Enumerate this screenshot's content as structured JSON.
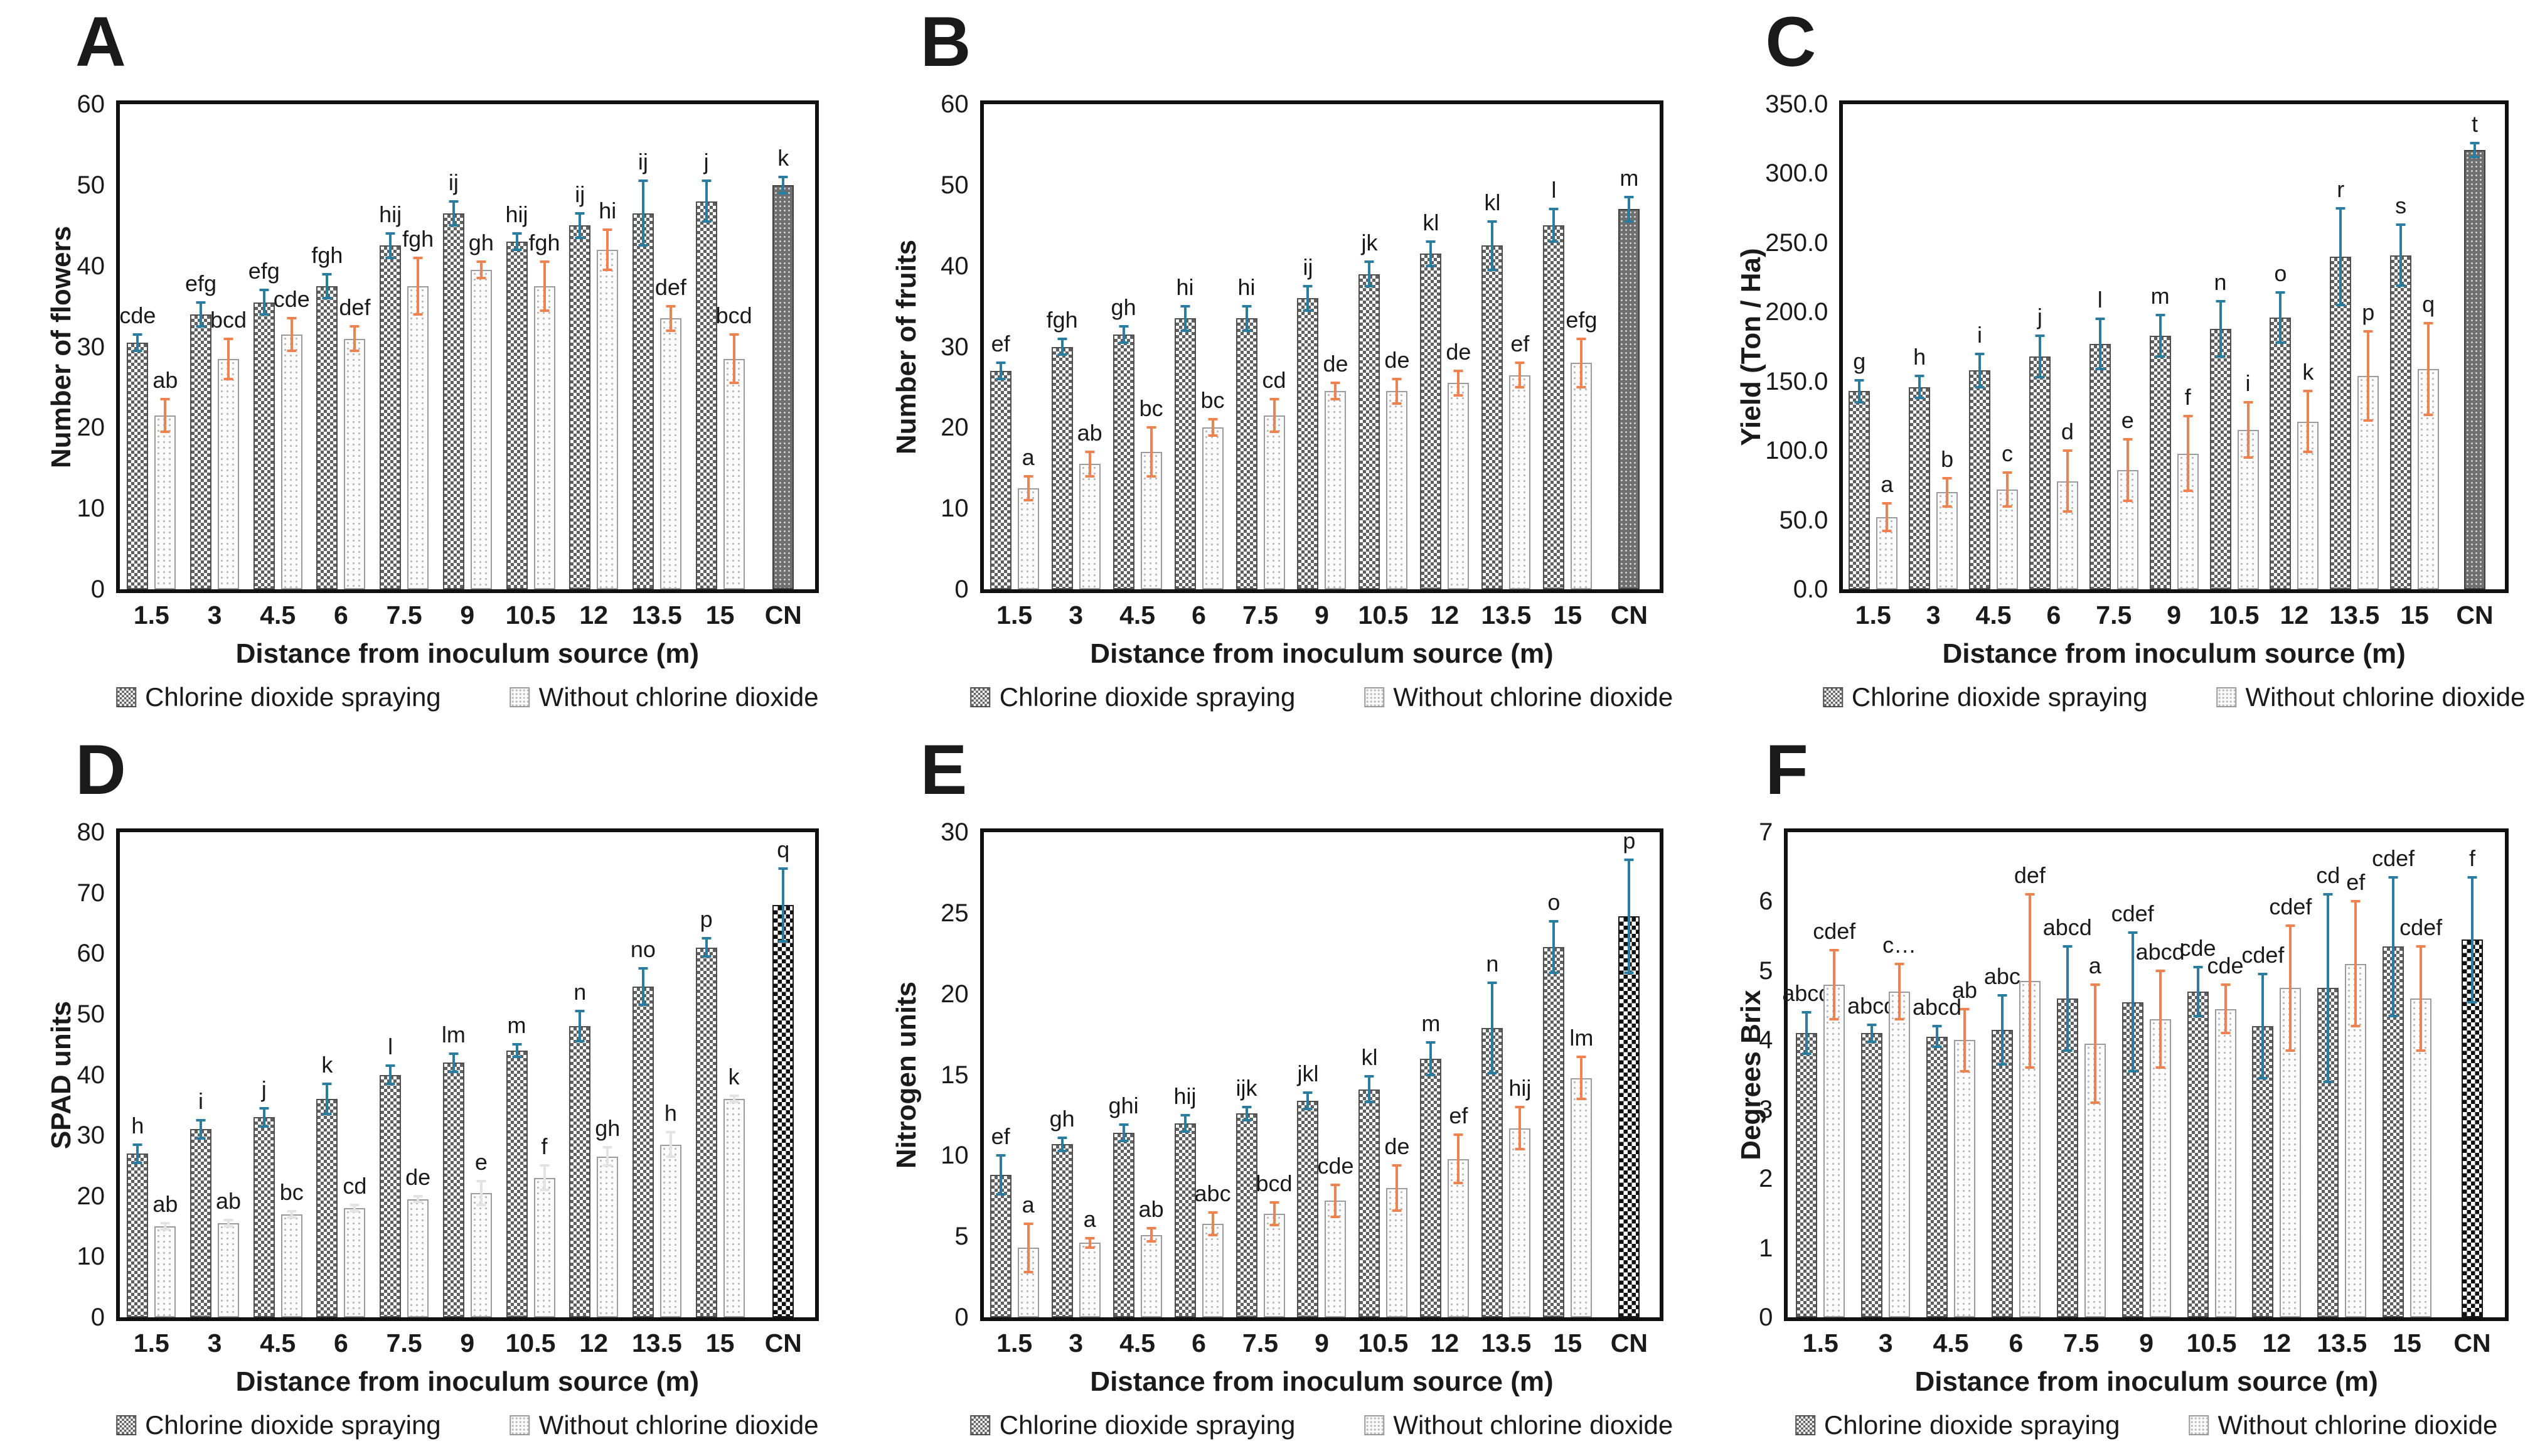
{
  "figure": {
    "type": "multi-panel-bar-figure",
    "panels": [
      "A",
      "B",
      "C",
      "D",
      "E",
      "F"
    ],
    "legend_labels": [
      "Chlorine dioxide spraying",
      "Without chlorine dioxide"
    ],
    "xlabel": "Distance from inoculum source (m)"
  },
  "colors": {
    "err1": "#2b7da0",
    "err2": "#ee8250",
    "text": "#1a1a1a"
  },
  "chart_data": [
    {
      "type": "bar",
      "panel": "A",
      "ylabel": "Number of flowers",
      "xlabel": "Distance from inoculum source (m)",
      "ylim": [
        0,
        60
      ],
      "ytick_labels": [
        "0",
        "10",
        "20",
        "30",
        "40",
        "50",
        "60"
      ],
      "categories": [
        "1.5",
        "3",
        "4.5",
        "6",
        "7.5",
        "9",
        "10.5",
        "12",
        "13.5",
        "15",
        "CN"
      ],
      "legend": [
        "Chlorine dioxide spraying",
        "Without chlorine dioxide"
      ],
      "legend_position": "bottom",
      "grid": false,
      "cn_style": "dark-dots",
      "margin_left": 185,
      "series": [
        {
          "name": "Chlorine dioxide spraying",
          "values": [
            30.5,
            34,
            35.5,
            37.5,
            42.5,
            46.5,
            43,
            45,
            46.5,
            48,
            50
          ],
          "err": [
            1,
            1.5,
            1.5,
            1.5,
            1.5,
            1.5,
            1,
            1.5,
            4,
            2.5,
            1
          ],
          "sig": [
            "cde",
            "efg",
            "efg",
            "fgh",
            "hij",
            "ij",
            "hij",
            "ij",
            "ij",
            "j",
            "k"
          ]
        },
        {
          "name": "Without chlorine dioxide",
          "values": [
            21.5,
            28.5,
            31.5,
            31,
            37.5,
            39.5,
            37.5,
            42,
            33.5,
            28.5,
            null
          ],
          "err": [
            2,
            2.5,
            2,
            1.5,
            3.5,
            1,
            3,
            2.5,
            1.5,
            3,
            null
          ],
          "sig": [
            "ab",
            "bcd",
            "cde",
            "def",
            "fgh",
            "gh",
            "fgh",
            "hi",
            "def",
            "bcd",
            null
          ]
        }
      ]
    },
    {
      "type": "bar",
      "panel": "B",
      "ylabel": "Number of fruits",
      "xlabel": "Distance from inoculum source (m)",
      "ylim": [
        0,
        60
      ],
      "ytick_labels": [
        "0",
        "10",
        "20",
        "30",
        "40",
        "50",
        "60"
      ],
      "categories": [
        "1.5",
        "3",
        "4.5",
        "6",
        "7.5",
        "9",
        "10.5",
        "12",
        "13.5",
        "15",
        "CN"
      ],
      "legend": [
        "Chlorine dioxide spraying",
        "Without chlorine dioxide"
      ],
      "legend_position": "bottom",
      "grid": false,
      "cn_style": "dark-dots",
      "margin_left": 215,
      "series": [
        {
          "name": "Chlorine dioxide spraying",
          "values": [
            27,
            30,
            31.5,
            33.5,
            33.5,
            36,
            39,
            41.5,
            42.5,
            45,
            47
          ],
          "err": [
            1,
            1,
            1,
            1.5,
            1.5,
            1.5,
            1.5,
            1.5,
            3,
            2,
            1.5
          ],
          "sig": [
            "ef",
            "fgh",
            "gh",
            "hi",
            "hi",
            "ij",
            "jk",
            "kl",
            "kl",
            "l",
            "m"
          ]
        },
        {
          "name": "Without chlorine dioxide",
          "values": [
            12.5,
            15.5,
            17,
            20,
            21.5,
            24.5,
            24.5,
            25.5,
            26.5,
            28,
            null
          ],
          "err": [
            1.5,
            1.5,
            3,
            1,
            2,
            1,
            1.5,
            1.5,
            1.5,
            3,
            null
          ],
          "sig": [
            "a",
            "ab",
            "bc",
            "bc",
            "cd",
            "de",
            "de",
            "de",
            "ef",
            "efg",
            null
          ]
        }
      ]
    },
    {
      "type": "bar",
      "panel": "C",
      "ylabel": "Yield (Ton / Ha)",
      "xlabel": "Distance from inoculum source (m)",
      "ylim": [
        0,
        350
      ],
      "ytick_labels": [
        "0.0",
        "50.0",
        "100.0",
        "150.0",
        "200.0",
        "250.0",
        "300.0",
        "350.0"
      ],
      "categories": [
        "1.5",
        "3",
        "4.5",
        "6",
        "7.5",
        "9",
        "10.5",
        "12",
        "13.5",
        "15",
        "CN"
      ],
      "legend": [
        "Chlorine dioxide spraying",
        "Without chlorine dioxide"
      ],
      "legend_position": "bottom",
      "grid": false,
      "cn_style": "dark-dots",
      "margin_left": 238,
      "series": [
        {
          "name": "Chlorine dioxide spraying",
          "values": [
            143,
            146,
            158,
            168,
            177,
            183,
            188,
            196,
            240,
            241,
            317
          ],
          "err": [
            8,
            8,
            12,
            15,
            18,
            15,
            20,
            18,
            35,
            22,
            5
          ],
          "sig": [
            "g",
            "h",
            "i",
            "j",
            "l",
            "m",
            "n",
            "o",
            "r",
            "s",
            "t"
          ]
        },
        {
          "name": "Without chlorine dioxide",
          "values": [
            52,
            70,
            72,
            78,
            86,
            98,
            115,
            121,
            154,
            159,
            null
          ],
          "err": [
            10,
            10,
            12,
            22,
            22,
            27,
            20,
            22,
            32,
            33,
            null
          ],
          "sig": [
            "a",
            "b",
            "c",
            "d",
            "e",
            "f",
            "i",
            "k",
            "p",
            "q",
            null
          ]
        }
      ]
    },
    {
      "type": "bar",
      "panel": "D",
      "ylabel": "SPAD units",
      "xlabel": "Distance from inoculum source (m)",
      "ylim": [
        0,
        80
      ],
      "ytick_labels": [
        "0",
        "10",
        "20",
        "30",
        "40",
        "50",
        "60",
        "70",
        "80"
      ],
      "categories": [
        "1.5",
        "3",
        "4.5",
        "6",
        "7.5",
        "9",
        "10.5",
        "12",
        "13.5",
        "15",
        "CN"
      ],
      "legend": [
        "Chlorine dioxide spraying",
        "Without chlorine dioxide"
      ],
      "legend_position": "bottom",
      "grid": false,
      "cn_style": "checkerboard",
      "margin_left": 185,
      "err2_color": "#e3e3e3",
      "series": [
        {
          "name": "Chlorine dioxide spraying",
          "values": [
            27,
            31,
            33,
            36,
            40,
            42,
            44,
            48,
            54.5,
            61,
            68
          ],
          "err": [
            1.5,
            1.5,
            1.5,
            2.5,
            1.5,
            1.5,
            1,
            2.5,
            3,
            1.5,
            6
          ],
          "sig": [
            "h",
            "i",
            "j",
            "k",
            "l",
            "lm",
            "m",
            "n",
            "no",
            "p",
            "q"
          ]
        },
        {
          "name": "Without chlorine dioxide",
          "values": [
            15,
            15.5,
            17,
            18,
            19.5,
            20.5,
            23,
            26.5,
            28.5,
            36,
            null
          ],
          "err": [
            0.5,
            0.5,
            0.5,
            0.5,
            0.5,
            2,
            2,
            1.5,
            2,
            0.5,
            null
          ],
          "sig": [
            "ab",
            "ab",
            "bc",
            "cd",
            "de",
            "e",
            "f",
            "gh",
            "h",
            "k",
            null
          ]
        }
      ]
    },
    {
      "type": "bar",
      "panel": "E",
      "ylabel": "Nitrogen units",
      "xlabel": "Distance from inoculum source (m)",
      "ylim": [
        0,
        30
      ],
      "ytick_labels": [
        "0",
        "5",
        "10",
        "15",
        "20",
        "25",
        "30"
      ],
      "categories": [
        "1.5",
        "3",
        "4.5",
        "6",
        "7.5",
        "9",
        "10.5",
        "12",
        "13.5",
        "15",
        "CN"
      ],
      "legend": [
        "Chlorine dioxide spraying",
        "Without chlorine dioxide"
      ],
      "legend_position": "bottom",
      "grid": false,
      "cn_style": "checkerboard",
      "margin_left": 215,
      "series": [
        {
          "name": "Chlorine dioxide spraying",
          "values": [
            8.8,
            10.7,
            11.4,
            12,
            12.6,
            13.4,
            14.1,
            16,
            17.9,
            22.9,
            24.8
          ],
          "err": [
            1.2,
            0.4,
            0.5,
            0.5,
            0.4,
            0.5,
            0.8,
            1,
            2.8,
            1.6,
            3.5
          ],
          "sig": [
            "ef",
            "gh",
            "ghi",
            "hij",
            "ijk",
            "jkl",
            "kl",
            "m",
            "n",
            "o",
            "p"
          ]
        },
        {
          "name": "Without chlorine dioxide",
          "values": [
            4.3,
            4.6,
            5.1,
            5.8,
            6.4,
            7.2,
            8,
            9.8,
            11.7,
            14.8,
            null
          ],
          "err": [
            1.5,
            0.3,
            0.4,
            0.7,
            0.7,
            1,
            1.4,
            1.5,
            1.3,
            1.3,
            null
          ],
          "sig": [
            "a",
            "a",
            "ab",
            "abc",
            "bcd",
            "cde",
            "de",
            "ef",
            "hij",
            "lm",
            null
          ]
        }
      ]
    },
    {
      "type": "bar",
      "panel": "F",
      "ylabel": "Degrees Brix",
      "xlabel": "Distance from inoculum source (m)",
      "ylim": [
        0,
        7
      ],
      "ytick_labels": [
        "0",
        "1",
        "2",
        "3",
        "4",
        "5",
        "6",
        "7"
      ],
      "categories": [
        "1.5",
        "3",
        "4.5",
        "6",
        "7.5",
        "9",
        "10.5",
        "12",
        "13.5",
        "15",
        "CN"
      ],
      "legend": [
        "Chlorine dioxide spraying",
        "Without chlorine dioxide"
      ],
      "legend_position": "bottom",
      "grid": false,
      "cn_style": "checkerboard",
      "margin_left": 150,
      "series": [
        {
          "name": "Chlorine dioxide spraying",
          "values": [
            4.1,
            4.1,
            4.05,
            4.15,
            4.6,
            4.55,
            4.7,
            4.2,
            4.75,
            5.35,
            5.45
          ],
          "err": [
            0.3,
            0.12,
            0.15,
            0.5,
            0.75,
            1,
            0.35,
            0.75,
            1.35,
            1,
            0.9
          ],
          "sig": [
            "abcd",
            "abcd",
            "abcd",
            "abc",
            "abcd",
            "cdef",
            "cde",
            "cdef",
            "cd",
            "cdef",
            "f"
          ]
        },
        {
          "name": "Without chlorine dioxide",
          "values": [
            4.8,
            4.7,
            4.0,
            4.85,
            3.95,
            4.3,
            4.45,
            4.75,
            5.1,
            4.6,
            null
          ],
          "err": [
            0.5,
            0.4,
            0.45,
            1.25,
            0.85,
            0.7,
            0.35,
            0.9,
            0.9,
            0.75,
            null
          ],
          "sig": [
            "cdef",
            "c…",
            "ab",
            "def",
            "a",
            "abcd",
            "cde",
            "cdef",
            "ef",
            "cdef",
            null
          ]
        }
      ]
    }
  ]
}
